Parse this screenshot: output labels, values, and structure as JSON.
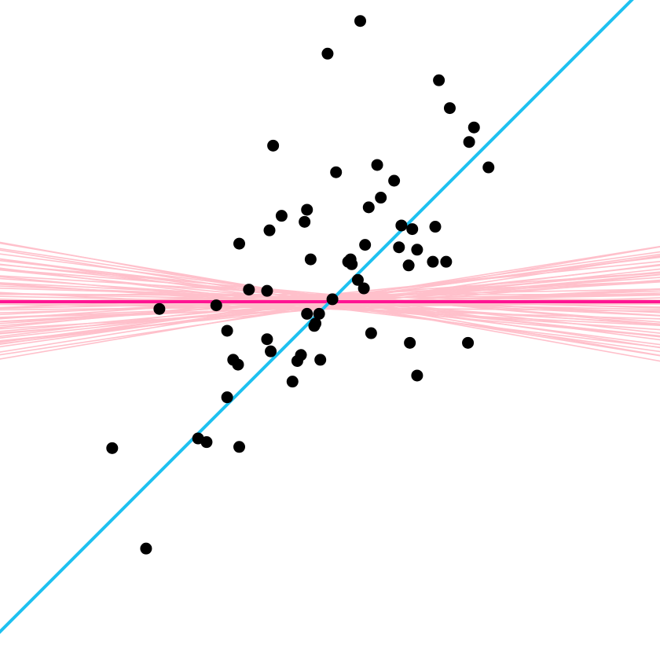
{
  "chart_data": {
    "type": "scatter",
    "title": "",
    "xlabel": "",
    "ylabel": "",
    "xlim": [
      -2.75,
      2.75
    ],
    "ylim": [
      -2.75,
      2.75
    ],
    "grid": false,
    "colors": {
      "points": "#000000",
      "fit_line": "#1ec1f0",
      "null_line": "#ff1493",
      "permutation_lines": "#ffc0cb"
    },
    "points": {
      "x": [
        0.05,
        -0.02,
        0.25,
        0.32,
        0.57,
        0.39,
        0.42,
        0.53,
        0.59,
        0.65,
        0.68,
        0.72,
        0.87,
        0.85,
        0.72,
        0.34,
        1.31,
        1.19,
        0.99,
        0.9,
        1.15,
        0.17,
        0.15,
        0.18,
        0.23,
        0.29,
        0.28,
        0.02,
        -0.19,
        -0.21,
        -0.16,
        -0.4,
        -0.5,
        -0.47,
        -0.52,
        -0.75,
        -0.67,
        -0.49,
        -0.52,
        -0.19,
        -0.12,
        -0.13,
        -0.24,
        -0.27,
        -0.08,
        -0.31,
        -1.41,
        -0.85,
        -0.94,
        -0.8,
        -0.76,
        -0.85,
        -1.09,
        -1.02,
        -0.75,
        -1.8,
        -1.52,
        0.66,
        0.96,
        1.14,
        -0.09
      ],
      "y": [
        1.07,
        2.05,
        2.32,
        0.78,
        0.45,
        1.13,
        0.86,
        1.0,
        0.63,
        0.3,
        0.6,
        0.43,
        0.62,
        0.33,
        -0.61,
        -0.26,
        1.11,
        1.44,
        1.6,
        1.83,
        1.32,
        0.35,
        0.33,
        0.31,
        0.18,
        0.47,
        0.11,
        0.02,
        0.76,
        0.66,
        0.35,
        0.71,
        0.59,
        1.29,
        0.09,
        0.48,
        0.1,
        -0.41,
        -0.31,
        -0.1,
        -0.18,
        -0.2,
        -0.44,
        -0.49,
        -0.48,
        -0.66,
        -0.06,
        -0.24,
        -0.03,
        -0.48,
        -0.52,
        -0.79,
        -1.13,
        -1.16,
        -1.2,
        -1.21,
        -2.04,
        -0.34,
        0.33,
        -0.34,
        -0.1
      ]
    },
    "fit_line": {
      "intercept": 0.0,
      "slope": 1.0
    },
    "null_line": {
      "intercept": 0.0,
      "slope": 0.0
    },
    "permutation_lines": [
      {
        "intercept": 0.06,
        "slope": -0.09
      },
      {
        "intercept": 0.05,
        "slope": -0.06
      },
      {
        "intercept": 0.02,
        "slope": -0.04
      },
      {
        "intercept": -0.01,
        "slope": -0.02
      },
      {
        "intercept": -0.04,
        "slope": -0.07
      },
      {
        "intercept": 0.04,
        "slope": -0.11
      },
      {
        "intercept": 0.03,
        "slope": 0.05
      },
      {
        "intercept": -0.05,
        "slope": 0.03
      },
      {
        "intercept": 0.01,
        "slope": 0.07
      },
      {
        "intercept": -0.02,
        "slope": 0.09
      },
      {
        "intercept": 0.06,
        "slope": 0.1
      },
      {
        "intercept": -0.03,
        "slope": 0.11
      },
      {
        "intercept": 0.0,
        "slope": -0.13
      },
      {
        "intercept": 0.02,
        "slope": 0.13
      },
      {
        "intercept": -0.06,
        "slope": -0.03
      },
      {
        "intercept": 0.03,
        "slope": 0.01
      },
      {
        "intercept": -0.01,
        "slope": -0.1
      },
      {
        "intercept": 0.0,
        "slope": 0.06
      },
      {
        "intercept": 0.05,
        "slope": 0.02
      },
      {
        "intercept": -0.04,
        "slope": 0.08
      },
      {
        "intercept": 0.02,
        "slope": -0.05
      },
      {
        "intercept": -0.02,
        "slope": 0.04
      },
      {
        "intercept": 0.04,
        "slope": 0.12
      },
      {
        "intercept": -0.05,
        "slope": -0.12
      },
      {
        "intercept": 0.01,
        "slope": 0.0
      },
      {
        "intercept": 0.0,
        "slope": -0.18
      },
      {
        "intercept": -0.03,
        "slope": 0.15
      },
      {
        "intercept": 0.03,
        "slope": -0.15
      },
      {
        "intercept": -0.01,
        "slope": 0.17
      },
      {
        "intercept": 0.05,
        "slope": -0.08
      },
      {
        "intercept": -0.06,
        "slope": 0.06
      },
      {
        "intercept": 0.02,
        "slope": 0.08
      },
      {
        "intercept": -0.02,
        "slope": -0.06
      },
      {
        "intercept": 0.04,
        "slope": -0.01
      },
      {
        "intercept": -0.04,
        "slope": -0.09
      },
      {
        "intercept": 0.01,
        "slope": 0.14
      },
      {
        "intercept": 0.0,
        "slope": 0.02
      },
      {
        "intercept": -0.03,
        "slope": -0.14
      },
      {
        "intercept": 0.06,
        "slope": 0.04
      },
      {
        "intercept": -0.05,
        "slope": 0.1
      },
      {
        "intercept": 0.02,
        "slope": -0.17
      },
      {
        "intercept": -0.01,
        "slope": 0.03
      },
      {
        "intercept": 0.03,
        "slope": -0.03
      },
      {
        "intercept": -0.02,
        "slope": 0.12
      },
      {
        "intercept": 0.01,
        "slope": -0.11
      },
      {
        "intercept": 0.0,
        "slope": 0.09
      },
      {
        "intercept": -0.04,
        "slope": 0.01
      },
      {
        "intercept": 0.05,
        "slope": 0.07
      },
      {
        "intercept": -0.06,
        "slope": -0.05
      },
      {
        "intercept": 0.02,
        "slope": 0.16
      },
      {
        "intercept": 0.0,
        "slope": -0.07
      },
      {
        "intercept": -0.03,
        "slope": 0.05
      },
      {
        "intercept": 0.04,
        "slope": -0.13
      },
      {
        "intercept": -0.01,
        "slope": -0.16
      },
      {
        "intercept": 0.03,
        "slope": 0.14
      },
      {
        "intercept": -0.02,
        "slope": 0.0
      },
      {
        "intercept": 0.01,
        "slope": -0.02
      },
      {
        "intercept": 0.0,
        "slope": 0.11
      },
      {
        "intercept": -0.05,
        "slope": -0.01
      },
      {
        "intercept": 0.06,
        "slope": 0.0
      }
    ]
  }
}
